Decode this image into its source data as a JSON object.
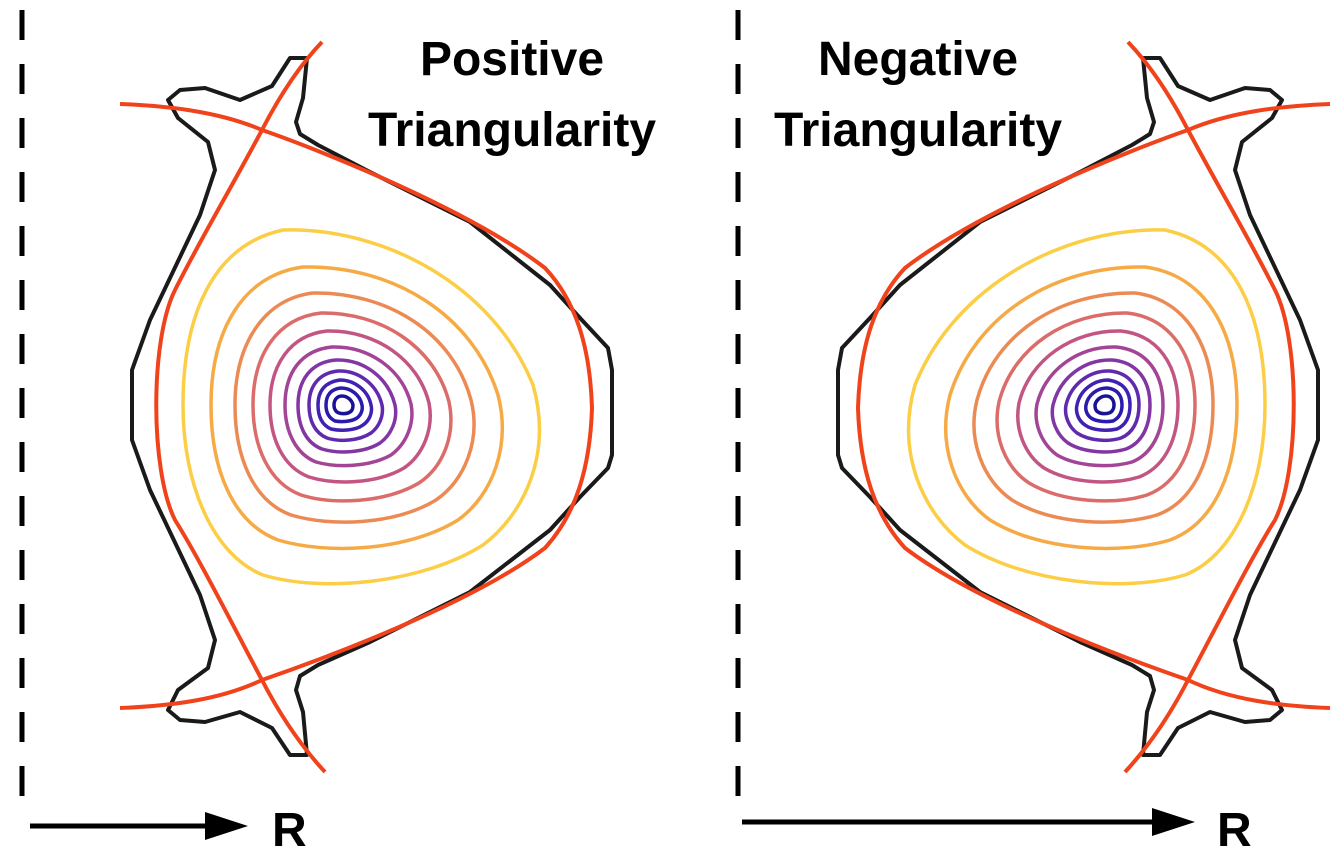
{
  "panels": [
    {
      "id": "positive",
      "title_line1": "Positive",
      "title_line2": "Triangularity",
      "axis_label": "R"
    },
    {
      "id": "negative",
      "title_line1": "Negative",
      "title_line2": "Triangularity",
      "axis_label": "R"
    }
  ],
  "colors": {
    "wall": "#1a1a1a",
    "separatrix": "#f0431c",
    "axis": "#000000",
    "flux_surfaces": [
      "#fcce45",
      "#f6aa45",
      "#ec8a54",
      "#db6c6a",
      "#c25582",
      "#a34596",
      "#8236a4",
      "#602aaf",
      "#3f21b3",
      "#2a1aad",
      "#1b1396"
    ]
  }
}
